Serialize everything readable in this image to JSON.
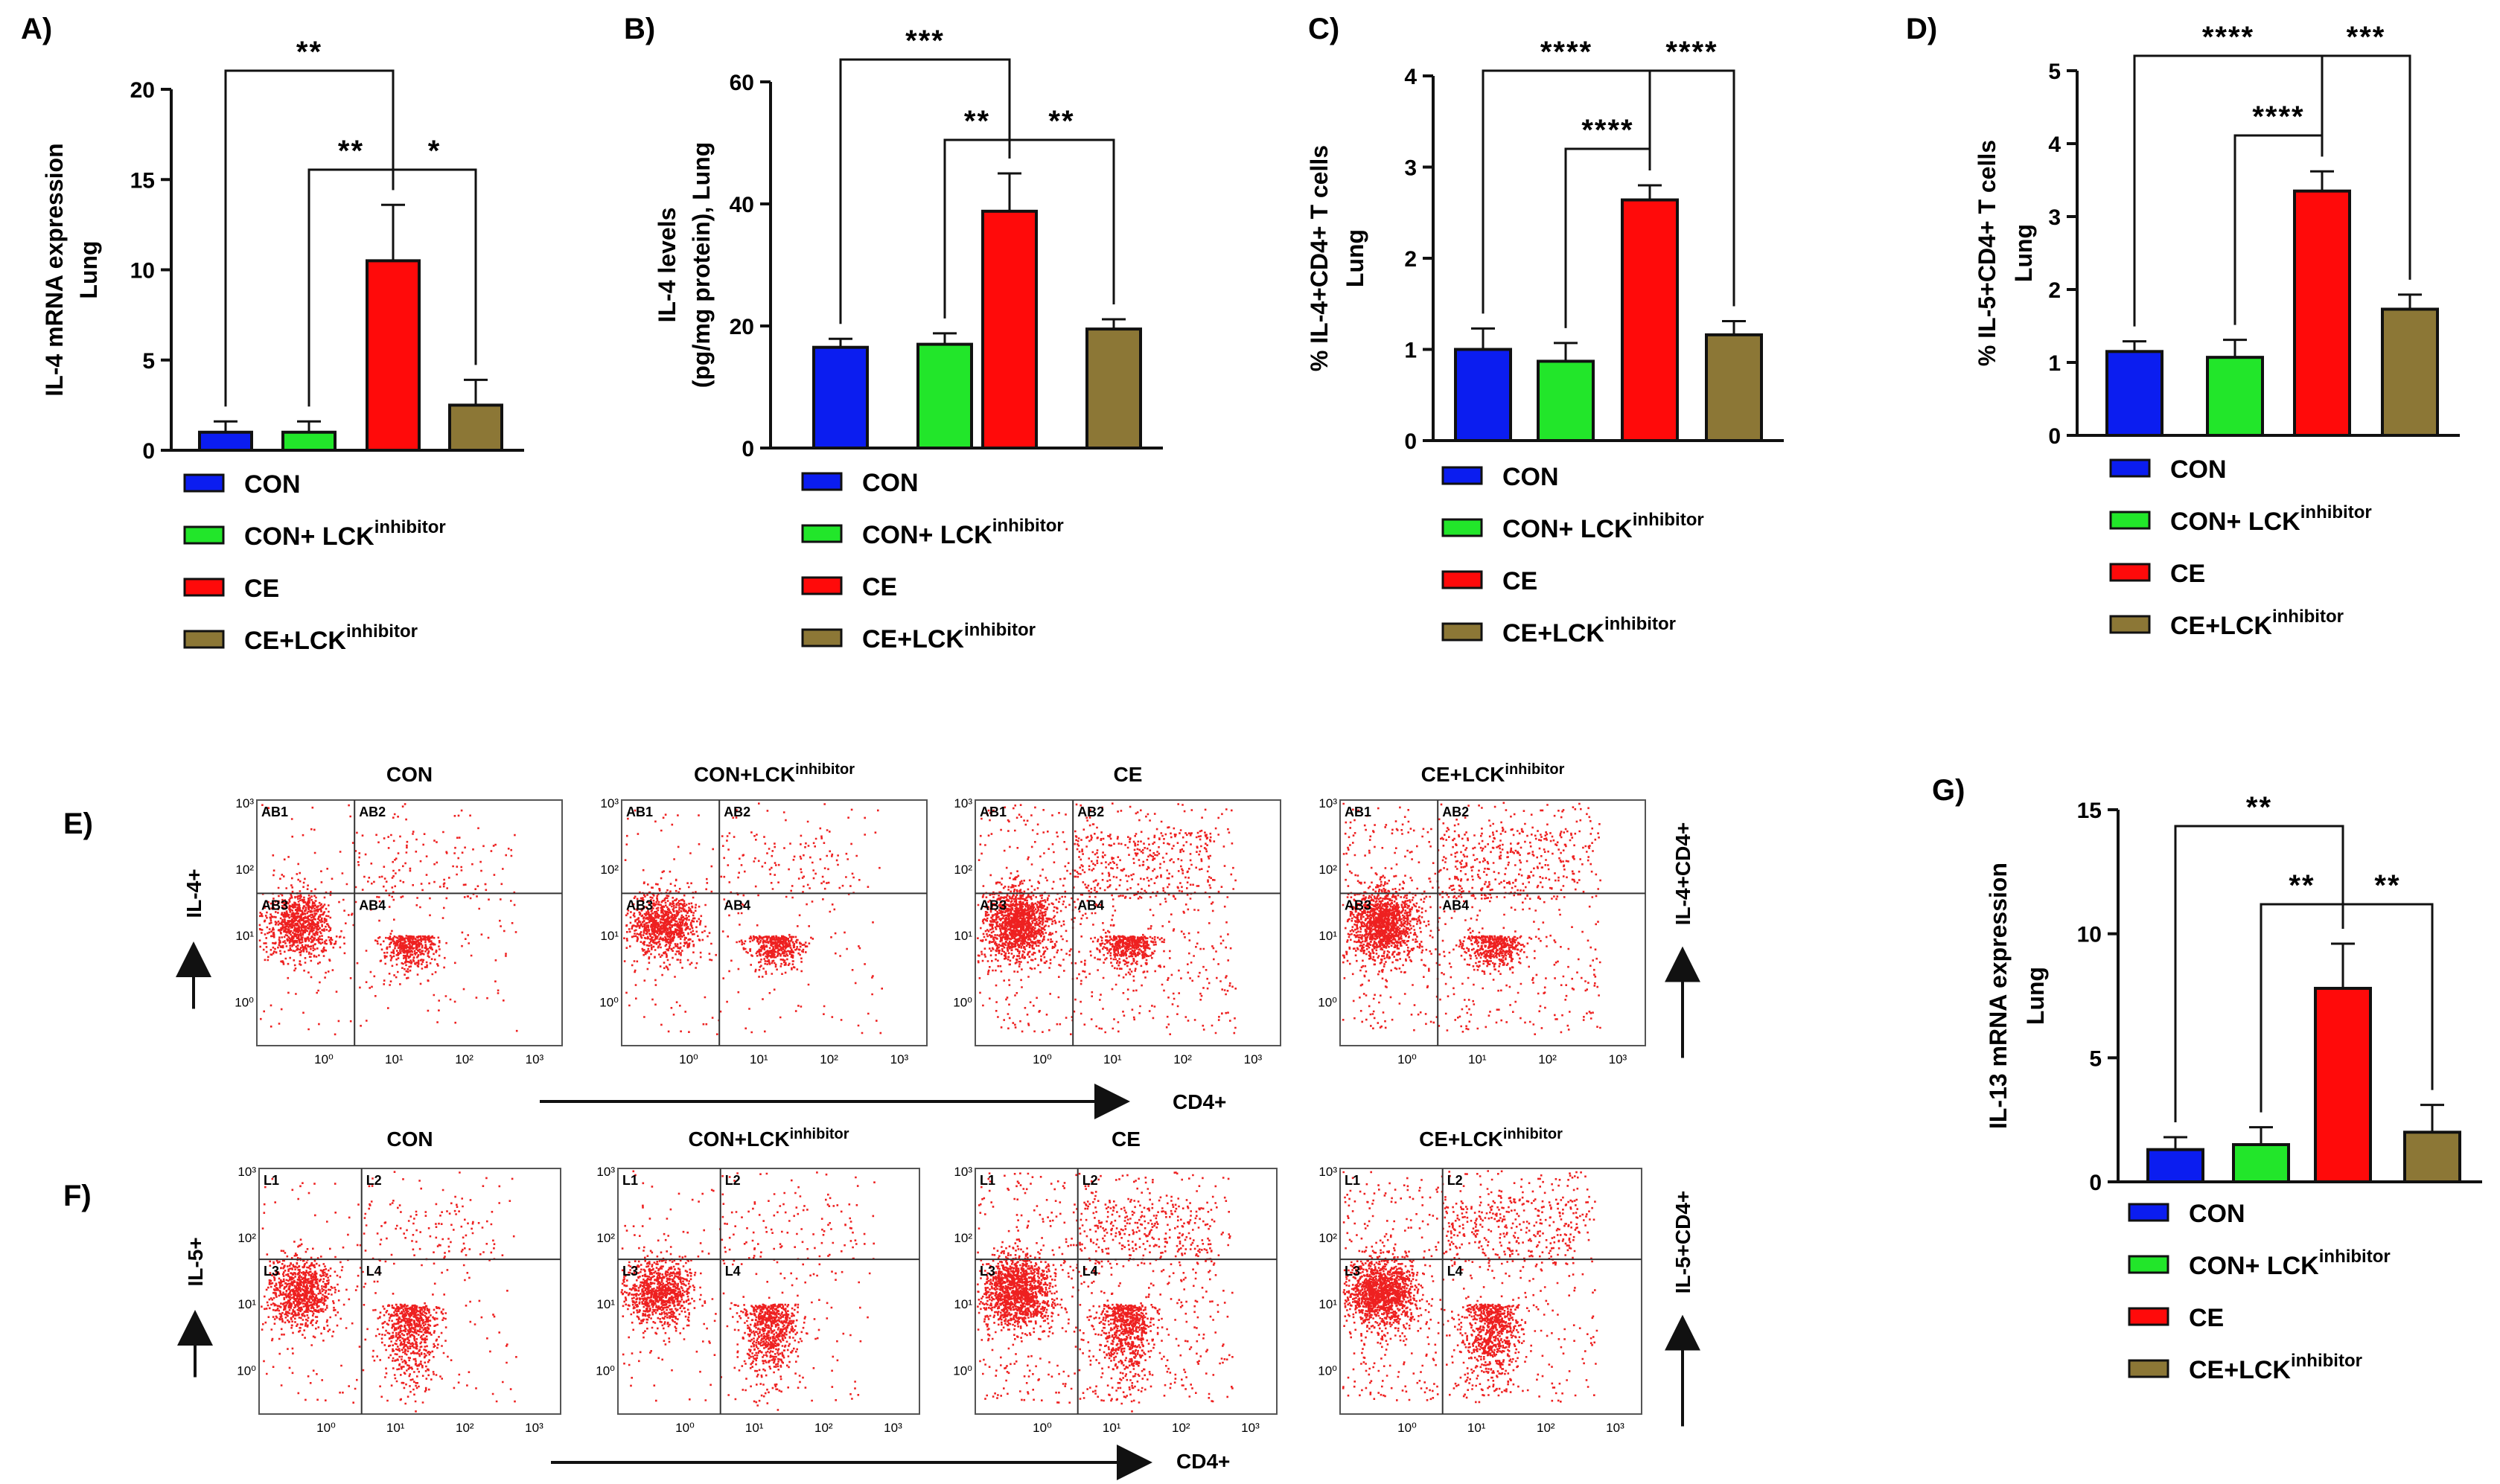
{
  "colors": {
    "CON": "#0b1df0",
    "CON_LCK": "#22e62a",
    "CE": "#ff0a0a",
    "CE_LCK": "#8c7736",
    "dots": "#ee2020",
    "axis": "#111111"
  },
  "legend": [
    {
      "key": "CON",
      "main": "CON",
      "sup": ""
    },
    {
      "key": "CON_LCK",
      "main": "CON+ LCK",
      "sup": "inhibitor"
    },
    {
      "key": "CE",
      "main": "CE",
      "sup": ""
    },
    {
      "key": "CE_LCK",
      "main": "CE+LCK",
      "sup": "inhibitor"
    }
  ],
  "chart_data": [
    {
      "id": "A",
      "type": "bar",
      "panel": "A)",
      "ylabel_lines": [
        "IL-4 mRNA expression",
        "Lung"
      ],
      "ylim": [
        0,
        20
      ],
      "yticks": [
        "0",
        "5",
        "10",
        "15",
        "20"
      ],
      "categories": [
        "CON",
        "CON+ LCK inhibitor",
        "CE",
        "CE+LCK inhibitor"
      ],
      "values": [
        1.0,
        1.0,
        10.5,
        2.5
      ],
      "errors": [
        0.6,
        0.6,
        3.1,
        1.4
      ],
      "significance": [
        {
          "from": 0,
          "to": 2,
          "label": "**"
        },
        {
          "from": 1,
          "to": 2,
          "label": "**"
        },
        {
          "from": 2,
          "to": 3,
          "label": "*"
        }
      ]
    },
    {
      "id": "B",
      "type": "bar",
      "panel": "B)",
      "ylabel_lines": [
        "IL-4 levels",
        "(pg/mg protein), Lung"
      ],
      "ylim": [
        0,
        60
      ],
      "yticks": [
        "0",
        "20",
        "40",
        "60"
      ],
      "categories": [
        "CON",
        "CON+ LCK inhibitor",
        "CE",
        "CE+LCK inhibitor"
      ],
      "values": [
        16.5,
        17.0,
        38.8,
        19.5
      ],
      "errors": [
        1.4,
        1.8,
        6.2,
        1.6
      ],
      "significance": [
        {
          "from": 0,
          "to": 2,
          "label": "***"
        },
        {
          "from": 1,
          "to": 2,
          "label": "**"
        },
        {
          "from": 2,
          "to": 3,
          "label": "**"
        }
      ]
    },
    {
      "id": "C",
      "type": "bar",
      "panel": "C)",
      "ylabel_lines": [
        "% IL-4+CD4+ T cells",
        "Lung"
      ],
      "ylim": [
        0,
        4
      ],
      "yticks": [
        "0",
        "1",
        "2",
        "3",
        "4"
      ],
      "categories": [
        "CON",
        "CON+ LCK inhibitor",
        "CE",
        "CE+LCK inhibitor"
      ],
      "values": [
        1.0,
        0.87,
        2.64,
        1.16
      ],
      "errors": [
        0.23,
        0.2,
        0.16,
        0.15
      ],
      "significance": [
        {
          "from": 0,
          "to": 2,
          "label": "****"
        },
        {
          "from": 1,
          "to": 2,
          "label": "****"
        },
        {
          "from": 2,
          "to": 3,
          "label": "****"
        }
      ]
    },
    {
      "id": "D",
      "type": "bar",
      "panel": "D)",
      "ylabel_lines": [
        "% IL-5+CD4+ T cells",
        "Lung"
      ],
      "ylim": [
        0,
        5
      ],
      "yticks": [
        "0",
        "1",
        "2",
        "3",
        "4",
        "5"
      ],
      "categories": [
        "CON",
        "CON+ LCK inhibitor",
        "CE",
        "CE+LCK inhibitor"
      ],
      "values": [
        1.15,
        1.07,
        3.35,
        1.73
      ],
      "errors": [
        0.14,
        0.24,
        0.27,
        0.2
      ],
      "significance": [
        {
          "from": 0,
          "to": 2,
          "label": "****"
        },
        {
          "from": 1,
          "to": 2,
          "label": "****"
        },
        {
          "from": 2,
          "to": 3,
          "label": "***"
        }
      ]
    },
    {
      "id": "G",
      "type": "bar",
      "panel": "G)",
      "ylabel_lines": [
        "IL-13 mRNA expression",
        "Lung"
      ],
      "ylim": [
        0,
        15
      ],
      "yticks": [
        "0",
        "5",
        "10",
        "15"
      ],
      "categories": [
        "CON",
        "CON+ LCK inhibitor",
        "CE",
        "CE+LCK inhibitor"
      ],
      "values": [
        1.3,
        1.5,
        7.8,
        2.0
      ],
      "errors": [
        0.5,
        0.7,
        1.8,
        1.1
      ],
      "significance": [
        {
          "from": 0,
          "to": 2,
          "label": "**"
        },
        {
          "from": 1,
          "to": 2,
          "label": "**"
        },
        {
          "from": 2,
          "to": 3,
          "label": "**"
        }
      ]
    }
  ],
  "flow": {
    "E": {
      "panel": "E)",
      "y_label": "IL-4+",
      "x_label": "CD4+",
      "right_label": "IL-4+CD4+",
      "quadrant_labels": [
        "AB1",
        "AB2",
        "AB3",
        "AB4"
      ],
      "plots": [
        {
          "main": "CON",
          "sup": ""
        },
        {
          "main": "CON+LCK",
          "sup": "inhibitor"
        },
        {
          "main": "CE",
          "sup": ""
        },
        {
          "main": "CE+LCK",
          "sup": "inhibitor"
        }
      ]
    },
    "F": {
      "panel": "F)",
      "y_label": "IL-5+",
      "x_label": "CD4+",
      "right_label": "IL-5+CD4+",
      "quadrant_labels": [
        "L1",
        "L2",
        "L3",
        "L4"
      ],
      "plots": [
        {
          "main": "CON",
          "sup": ""
        },
        {
          "main": "CON+LCK",
          "sup": "inhibitor"
        },
        {
          "main": "CE",
          "sup": ""
        },
        {
          "main": "CE+LCK",
          "sup": "inhibitor"
        }
      ]
    },
    "axis_ticks": [
      "10³",
      "10²",
      "10¹",
      "10⁰"
    ],
    "x_ticks": [
      "10⁰",
      "10¹",
      "10²",
      "10³"
    ]
  }
}
